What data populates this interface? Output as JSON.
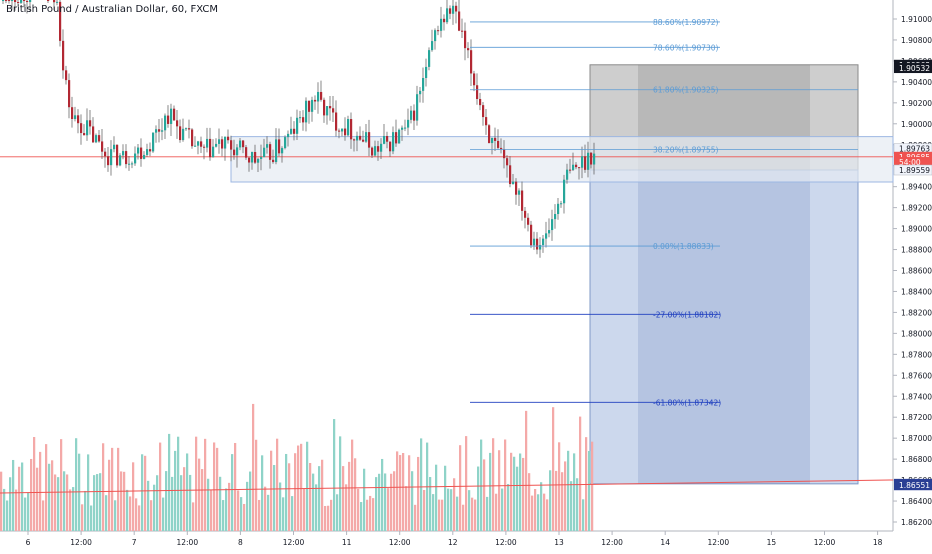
{
  "chart_data": {
    "type": "candlestick",
    "title": "British Pound / Australian Dollar, 60, FXCM",
    "x_ticks": [
      "6",
      "12:00",
      "7",
      "12:00",
      "8",
      "12:00",
      "11",
      "12:00",
      "12",
      "12:00",
      "13",
      "12:00",
      "14",
      "12:00",
      "15",
      "12:00",
      "18"
    ],
    "y_ticks": [
      "1.91000",
      "1.90800",
      "1.90600",
      "1.90400",
      "1.90200",
      "1.90000",
      "1.89800",
      "1.89600",
      "1.89400",
      "1.89200",
      "1.89000",
      "1.88800",
      "1.88600",
      "1.88400",
      "1.88200",
      "1.88000",
      "1.87800",
      "1.87600",
      "1.87400",
      "1.87200",
      "1.87000",
      "1.86800",
      "1.86600",
      "1.86400",
      "1.86200"
    ],
    "ylim": [
      1.8612,
      1.9124
    ],
    "fibonacci": [
      {
        "label": "88.60%(1.90972)",
        "value": 1.90972
      },
      {
        "label": "78.60%(1.90730)",
        "value": 1.9073
      },
      {
        "label": "61.80%(1.90325)",
        "value": 1.90325
      },
      {
        "label": "38.20%(1.89755)",
        "value": 1.89755
      },
      {
        "label": "0.00%(1.88833)",
        "value": 1.88833
      },
      {
        "label": "-27.00%(1.88182)",
        "value": 1.88182
      },
      {
        "label": "-61.80%(1.87342)",
        "value": 1.87342
      }
    ],
    "price_labels": [
      {
        "text": "1.90563",
        "value": 1.90563,
        "style": "dark"
      },
      {
        "text": "1.90532",
        "value": 1.90532,
        "style": "dark"
      },
      {
        "text": "1.89763",
        "value": 1.89763,
        "style": "light"
      },
      {
        "text": "1.89685",
        "value": 1.89685,
        "style": "red"
      },
      {
        "text": "54:00",
        "value": 1.89635,
        "style": "red"
      },
      {
        "text": "1.89559",
        "value": 1.89559,
        "style": "light"
      },
      {
        "text": "1.86564",
        "value": 1.86564,
        "style": "blue"
      },
      {
        "text": "1.86551",
        "value": 1.86551,
        "style": "blue"
      }
    ],
    "current_price": 1.89685,
    "support_zone": [
      1.89559,
      1.89763
    ],
    "short_position": {
      "entry": 1.89559,
      "stop": 1.90563,
      "target": 1.86564
    },
    "colors": {
      "up": "#26a69a",
      "down": "#b22833",
      "vol_up": "#8fd3c8",
      "vol_down": "#f4a9a8",
      "fib": "#5b9bd5",
      "fib_ext": "#1f3fbf",
      "zone_fill": "#e6ebf2",
      "zone_stroke": "#9db7e3",
      "stop_fill": "#9e9e9e",
      "target_fill": "#8fa9d6",
      "price_line": "#ef5350"
    }
  }
}
